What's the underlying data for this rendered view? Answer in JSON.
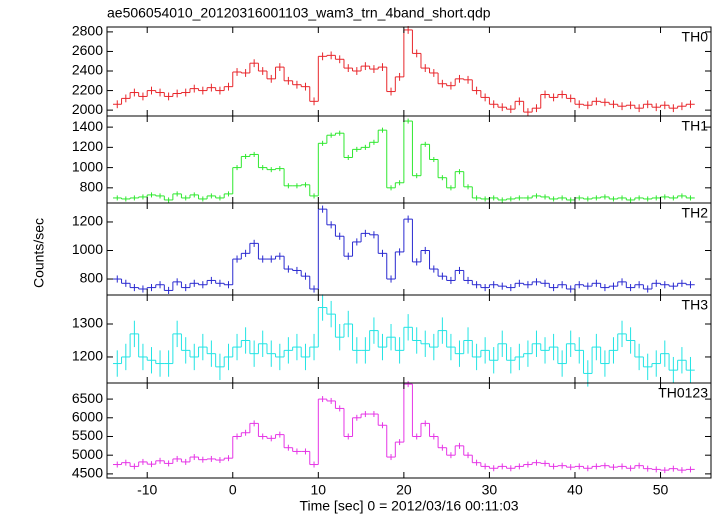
{
  "chart_data": {
    "type": "step",
    "title": "ae506054010_20120316001103_wam3_trn_4band_short.qdp",
    "xlabel": "Time [sec] 0 = 2012/03/16 00:11:03",
    "ylabel": "Counts/sec",
    "xlim": [
      -14.7,
      55.9
    ],
    "xticks": [
      -10,
      0,
      10,
      20,
      30,
      40,
      50
    ],
    "x": [
      -13.5,
      -12.5,
      -11.5,
      -10.5,
      -9.5,
      -8.5,
      -7.5,
      -6.5,
      -5.5,
      -4.5,
      -3.5,
      -2.5,
      -1.5,
      -0.5,
      0.5,
      1.5,
      2.5,
      3.5,
      4.5,
      5.5,
      6.5,
      7.5,
      8.5,
      9.5,
      10.5,
      11.5,
      12.5,
      13.5,
      14.5,
      15.5,
      16.5,
      17.5,
      18.5,
      19.5,
      20.5,
      21.5,
      22.5,
      23.5,
      24.5,
      25.5,
      26.5,
      27.5,
      28.5,
      29.5,
      30.5,
      31.5,
      32.5,
      33.5,
      34.5,
      35.5,
      36.5,
      37.5,
      38.5,
      39.5,
      40.5,
      41.5,
      42.5,
      43.5,
      44.5,
      45.5,
      46.5,
      47.5,
      48.5,
      49.5,
      50.5,
      51.5,
      52.5,
      53.5
    ],
    "panels": [
      {
        "name": "TH0",
        "color": "#e8262b",
        "ylim": [
          1940,
          2850
        ],
        "yticks": [
          2000,
          2200,
          2400,
          2600,
          2800
        ],
        "error": 40,
        "values": [
          2060,
          2120,
          2180,
          2140,
          2200,
          2180,
          2140,
          2170,
          2180,
          2220,
          2200,
          2230,
          2200,
          2240,
          2390,
          2380,
          2480,
          2400,
          2320,
          2440,
          2300,
          2260,
          2240,
          2090,
          2550,
          2560,
          2520,
          2430,
          2400,
          2450,
          2420,
          2440,
          2190,
          2340,
          2820,
          2580,
          2430,
          2380,
          2270,
          2250,
          2320,
          2310,
          2200,
          2130,
          2060,
          2030,
          2010,
          2090,
          1980,
          2020,
          2160,
          2130,
          2160,
          2120,
          2060,
          2050,
          2090,
          2080,
          2060,
          2040,
          2050,
          2020,
          2060,
          2030,
          2050,
          2020,
          2040,
          2060
        ]
      },
      {
        "name": "TH1",
        "color": "#2ee82e",
        "ylim": [
          650,
          1510
        ],
        "yticks": [
          800,
          1000,
          1200,
          1400
        ],
        "error": 25,
        "values": [
          700,
          690,
          700,
          710,
          730,
          720,
          680,
          740,
          700,
          730,
          690,
          720,
          700,
          740,
          1000,
          1110,
          1130,
          1000,
          980,
          990,
          820,
          820,
          830,
          720,
          1240,
          1320,
          1340,
          1100,
          1180,
          1200,
          1250,
          1370,
          800,
          850,
          1460,
          920,
          1230,
          1080,
          900,
          800,
          960,
          810,
          700,
          690,
          700,
          680,
          690,
          700,
          700,
          720,
          710,
          690,
          700,
          680,
          700,
          690,
          700,
          710,
          690,
          700,
          680,
          700,
          690,
          700,
          710,
          700,
          720,
          700
        ]
      },
      {
        "name": "TH2",
        "color": "#2a2ad0",
        "ylim": [
          688,
          1333
        ],
        "yticks": [
          800,
          1000,
          1200
        ],
        "error": 25,
        "values": [
          800,
          770,
          740,
          730,
          740,
          760,
          720,
          780,
          740,
          770,
          760,
          790,
          770,
          760,
          940,
          980,
          1050,
          940,
          940,
          960,
          870,
          860,
          820,
          730,
          1290,
          1180,
          1100,
          960,
          1060,
          1120,
          1110,
          980,
          800,
          990,
          1220,
          920,
          1000,
          870,
          820,
          790,
          860,
          790,
          760,
          740,
          760,
          750,
          740,
          770,
          760,
          780,
          770,
          740,
          760,
          730,
          760,
          750,
          770,
          740,
          750,
          780,
          740,
          760,
          730,
          770,
          760,
          750,
          770,
          760
        ]
      },
      {
        "name": "TH3",
        "color": "#22e4e4",
        "ylim": [
          1121,
          1388
        ],
        "yticks": [
          1200,
          1300
        ],
        "error": 40,
        "values": [
          1180,
          1200,
          1270,
          1200,
          1190,
          1180,
          1180,
          1270,
          1220,
          1200,
          1230,
          1210,
          1170,
          1200,
          1230,
          1250,
          1210,
          1240,
          1210,
          1200,
          1220,
          1230,
          1200,
          1230,
          1350,
          1330,
          1260,
          1300,
          1220,
          1220,
          1280,
          1230,
          1260,
          1220,
          1290,
          1250,
          1240,
          1230,
          1280,
          1230,
          1210,
          1250,
          1200,
          1220,
          1190,
          1240,
          1190,
          1200,
          1210,
          1240,
          1220,
          1230,
          1180,
          1240,
          1220,
          1150,
          1230,
          1180,
          1220,
          1270,
          1250,
          1200,
          1170,
          1180,
          1210,
          1160,
          1190,
          1160
        ]
      },
      {
        "name": "TH0123",
        "color": "#e635e6",
        "ylim": [
          4390,
          6930
        ],
        "yticks": [
          4500,
          5000,
          5500,
          6000,
          6500
        ],
        "error": 80,
        "values": [
          4750,
          4800,
          4700,
          4820,
          4760,
          4850,
          4780,
          4900,
          4820,
          4950,
          4880,
          4900,
          4870,
          4920,
          5500,
          5600,
          5850,
          5500,
          5450,
          5550,
          5200,
          5100,
          5100,
          4750,
          6500,
          6450,
          6250,
          5500,
          6000,
          6100,
          6100,
          5800,
          4950,
          5350,
          6900,
          5500,
          5850,
          5500,
          5200,
          5000,
          5250,
          5000,
          4800,
          4700,
          4650,
          4700,
          4650,
          4700,
          4750,
          4800,
          4780,
          4700,
          4720,
          4680,
          4700,
          4650,
          4700,
          4720,
          4680,
          4700,
          4650,
          4720,
          4640,
          4620,
          4600,
          4640,
          4600,
          4620
        ]
      }
    ]
  }
}
